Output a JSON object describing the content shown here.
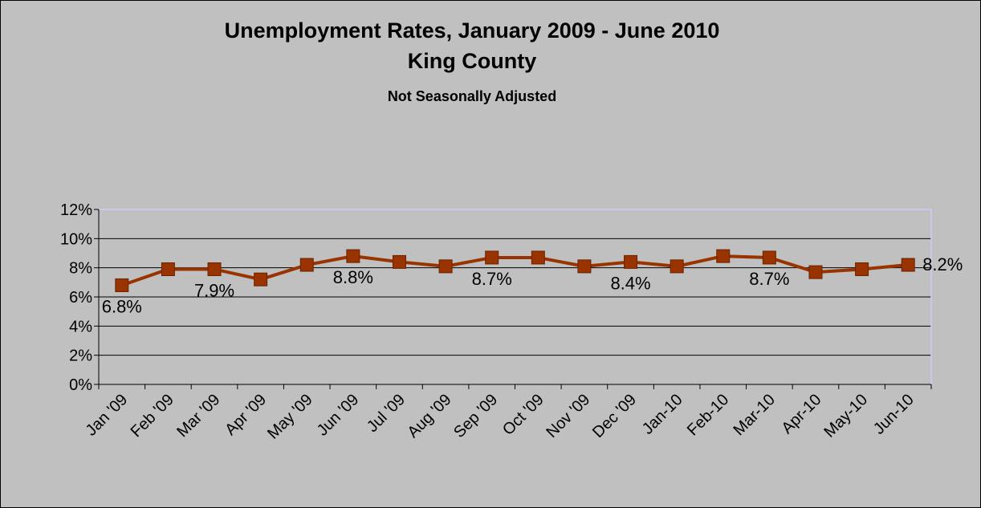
{
  "chart_data": {
    "type": "line",
    "title": "Unemployment Rates, January 2009 - June 2010",
    "subtitle": "King County",
    "note": "Not Seasonally Adjusted",
    "xlabel": "",
    "ylabel": "",
    "categories": [
      "Jan '09",
      "Feb '09",
      "Mar '09",
      "Apr '09",
      "May '09",
      "Jun '09",
      "Jul '09",
      "Aug '09",
      "Sep '09",
      "Oct '09",
      "Nov '09",
      "Dec '09",
      "Jan-10",
      "Feb-10",
      "Mar-10",
      "Apr-10",
      "May-10",
      "Jun-10"
    ],
    "series": [
      {
        "values": [
          6.8,
          7.9,
          7.9,
          7.2,
          8.2,
          8.8,
          8.4,
          8.1,
          8.7,
          8.7,
          8.1,
          8.4,
          8.1,
          8.8,
          8.7,
          7.7,
          7.9,
          8.2
        ],
        "color": "#993300"
      }
    ],
    "data_labels": [
      {
        "index": 0,
        "text": "6.8%"
      },
      {
        "index": 2,
        "text": "7.9%"
      },
      {
        "index": 5,
        "text": "8.8%"
      },
      {
        "index": 8,
        "text": "8.7%"
      },
      {
        "index": 11,
        "text": "8.4%"
      },
      {
        "index": 14,
        "text": "8.7%"
      },
      {
        "index": 17,
        "text": "8.2%"
      }
    ],
    "yticks": [
      "0%",
      "2%",
      "4%",
      "6%",
      "8%",
      "10%",
      "12%"
    ],
    "ylim": [
      0,
      12
    ],
    "grid": true,
    "legend": "none",
    "colors": {
      "background": "#c0c0c0",
      "plot_area": "#c0c0c0",
      "gridline": "#000000",
      "plot_border": "#ccccff",
      "series": "#993300"
    }
  }
}
